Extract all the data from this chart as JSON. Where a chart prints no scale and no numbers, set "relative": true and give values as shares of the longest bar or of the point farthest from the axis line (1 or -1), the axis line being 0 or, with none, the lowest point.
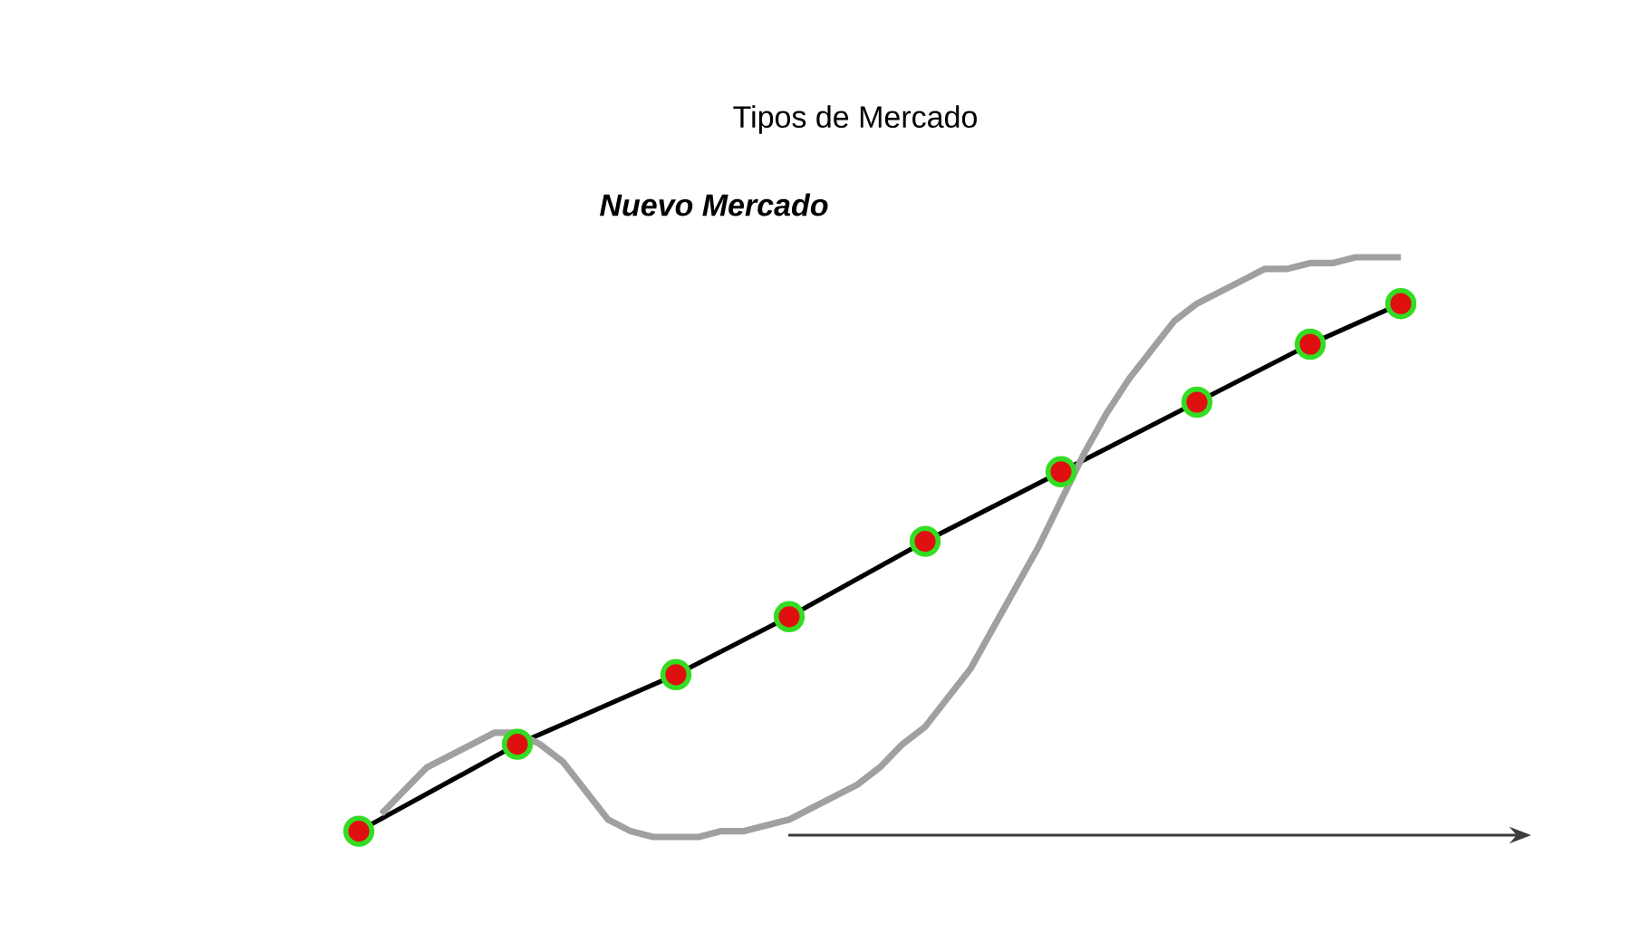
{
  "chart_data": {
    "type": "line",
    "title": "Tipos de Mercado",
    "subtitle": "Nuevo Mercado",
    "relative": true,
    "categories": [
      null,
      null,
      null,
      null,
      null,
      null,
      null,
      null,
      null,
      null,
      null,
      null,
      null,
      null,
      null,
      null,
      null,
      null,
      null,
      null,
      null,
      null,
      null,
      null,
      null,
      null,
      null,
      null,
      null,
      null,
      null,
      null,
      null,
      null,
      null,
      null,
      null,
      null,
      null,
      null,
      null,
      null,
      null,
      null,
      null,
      null,
      null
    ],
    "series": [
      {
        "color": "#000000",
        "marker": "circle",
        "values": [
          0.01,
          null,
          null,
          null,
          null,
          null,
          null,
          0.16,
          null,
          null,
          null,
          null,
          null,
          null,
          0.28,
          null,
          null,
          null,
          null,
          0.38,
          null,
          null,
          null,
          null,
          null,
          0.51,
          null,
          null,
          null,
          null,
          null,
          0.63,
          null,
          null,
          null,
          null,
          null,
          0.75,
          null,
          null,
          null,
          null,
          0.85,
          null,
          null,
          null,
          0.92
        ]
      },
      {
        "color": "#a0a0a0",
        "marker": "none",
        "values": [
          null,
          0.04,
          0.08,
          0.12,
          0.14,
          0.16,
          0.18,
          0.18,
          0.16,
          0.13,
          0.08,
          0.03,
          0.01,
          0,
          0,
          0,
          0.01,
          0.01,
          0.02,
          0.03,
          0.05,
          0.07,
          0.09,
          0.12,
          0.16,
          0.19,
          0.24,
          0.29,
          0.36,
          0.43,
          0.5,
          0.58,
          0.66,
          0.73,
          0.79,
          0.84,
          0.89,
          0.92,
          0.94,
          0.96,
          0.98,
          0.98,
          0.99,
          0.99,
          1,
          1,
          1
        ]
      }
    ]
  }
}
